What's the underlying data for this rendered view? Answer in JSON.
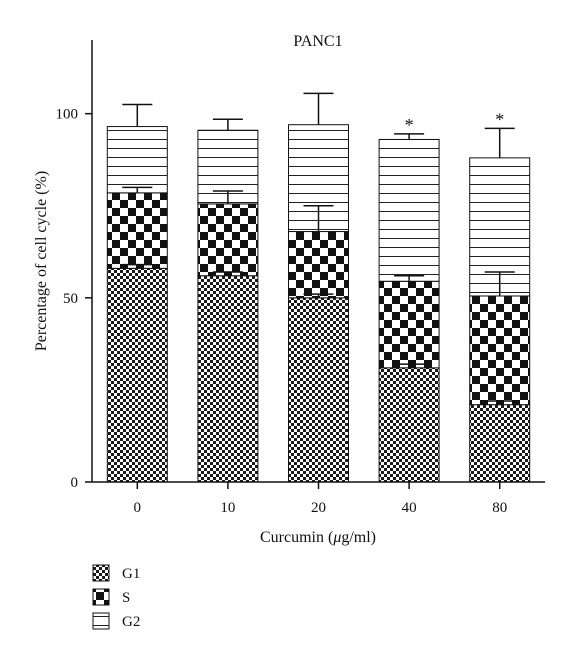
{
  "chart_data": {
    "type": "bar",
    "stacked": true,
    "title": "PANC1",
    "xlabel_prefix": "Curcumin (",
    "xlabel_mu": "μ",
    "xlabel_suffix": "g/ml)",
    "ylabel": "Percentage of cell cycle (%)",
    "ylim": [
      0,
      120
    ],
    "yticks": [
      0,
      50,
      100
    ],
    "ytick_labels": [
      "0",
      "50",
      "100"
    ],
    "categories": [
      "0",
      "10",
      "20",
      "40",
      "80"
    ],
    "series": [
      {
        "name": "G1",
        "pattern": "fine-checker",
        "values": [
          58,
          56,
          50,
          31,
          21
        ],
        "errors": [
          1,
          1,
          1,
          1,
          1
        ]
      },
      {
        "name": "S",
        "pattern": "coarse-checker",
        "values": [
          20.5,
          19.5,
          18,
          23.5,
          29.5
        ],
        "errors": [
          1.5,
          3.5,
          7,
          1.5,
          6.5
        ]
      },
      {
        "name": "G2",
        "pattern": "horizontal-lines",
        "values": [
          18,
          20,
          29,
          38.5,
          37.5
        ],
        "errors": [
          6,
          3,
          8.5,
          1.5,
          8
        ]
      }
    ],
    "annotations": [
      {
        "category": "40",
        "text": "*"
      },
      {
        "category": "80",
        "text": "*"
      }
    ],
    "legend_position": "bottom-left",
    "grid": false
  }
}
